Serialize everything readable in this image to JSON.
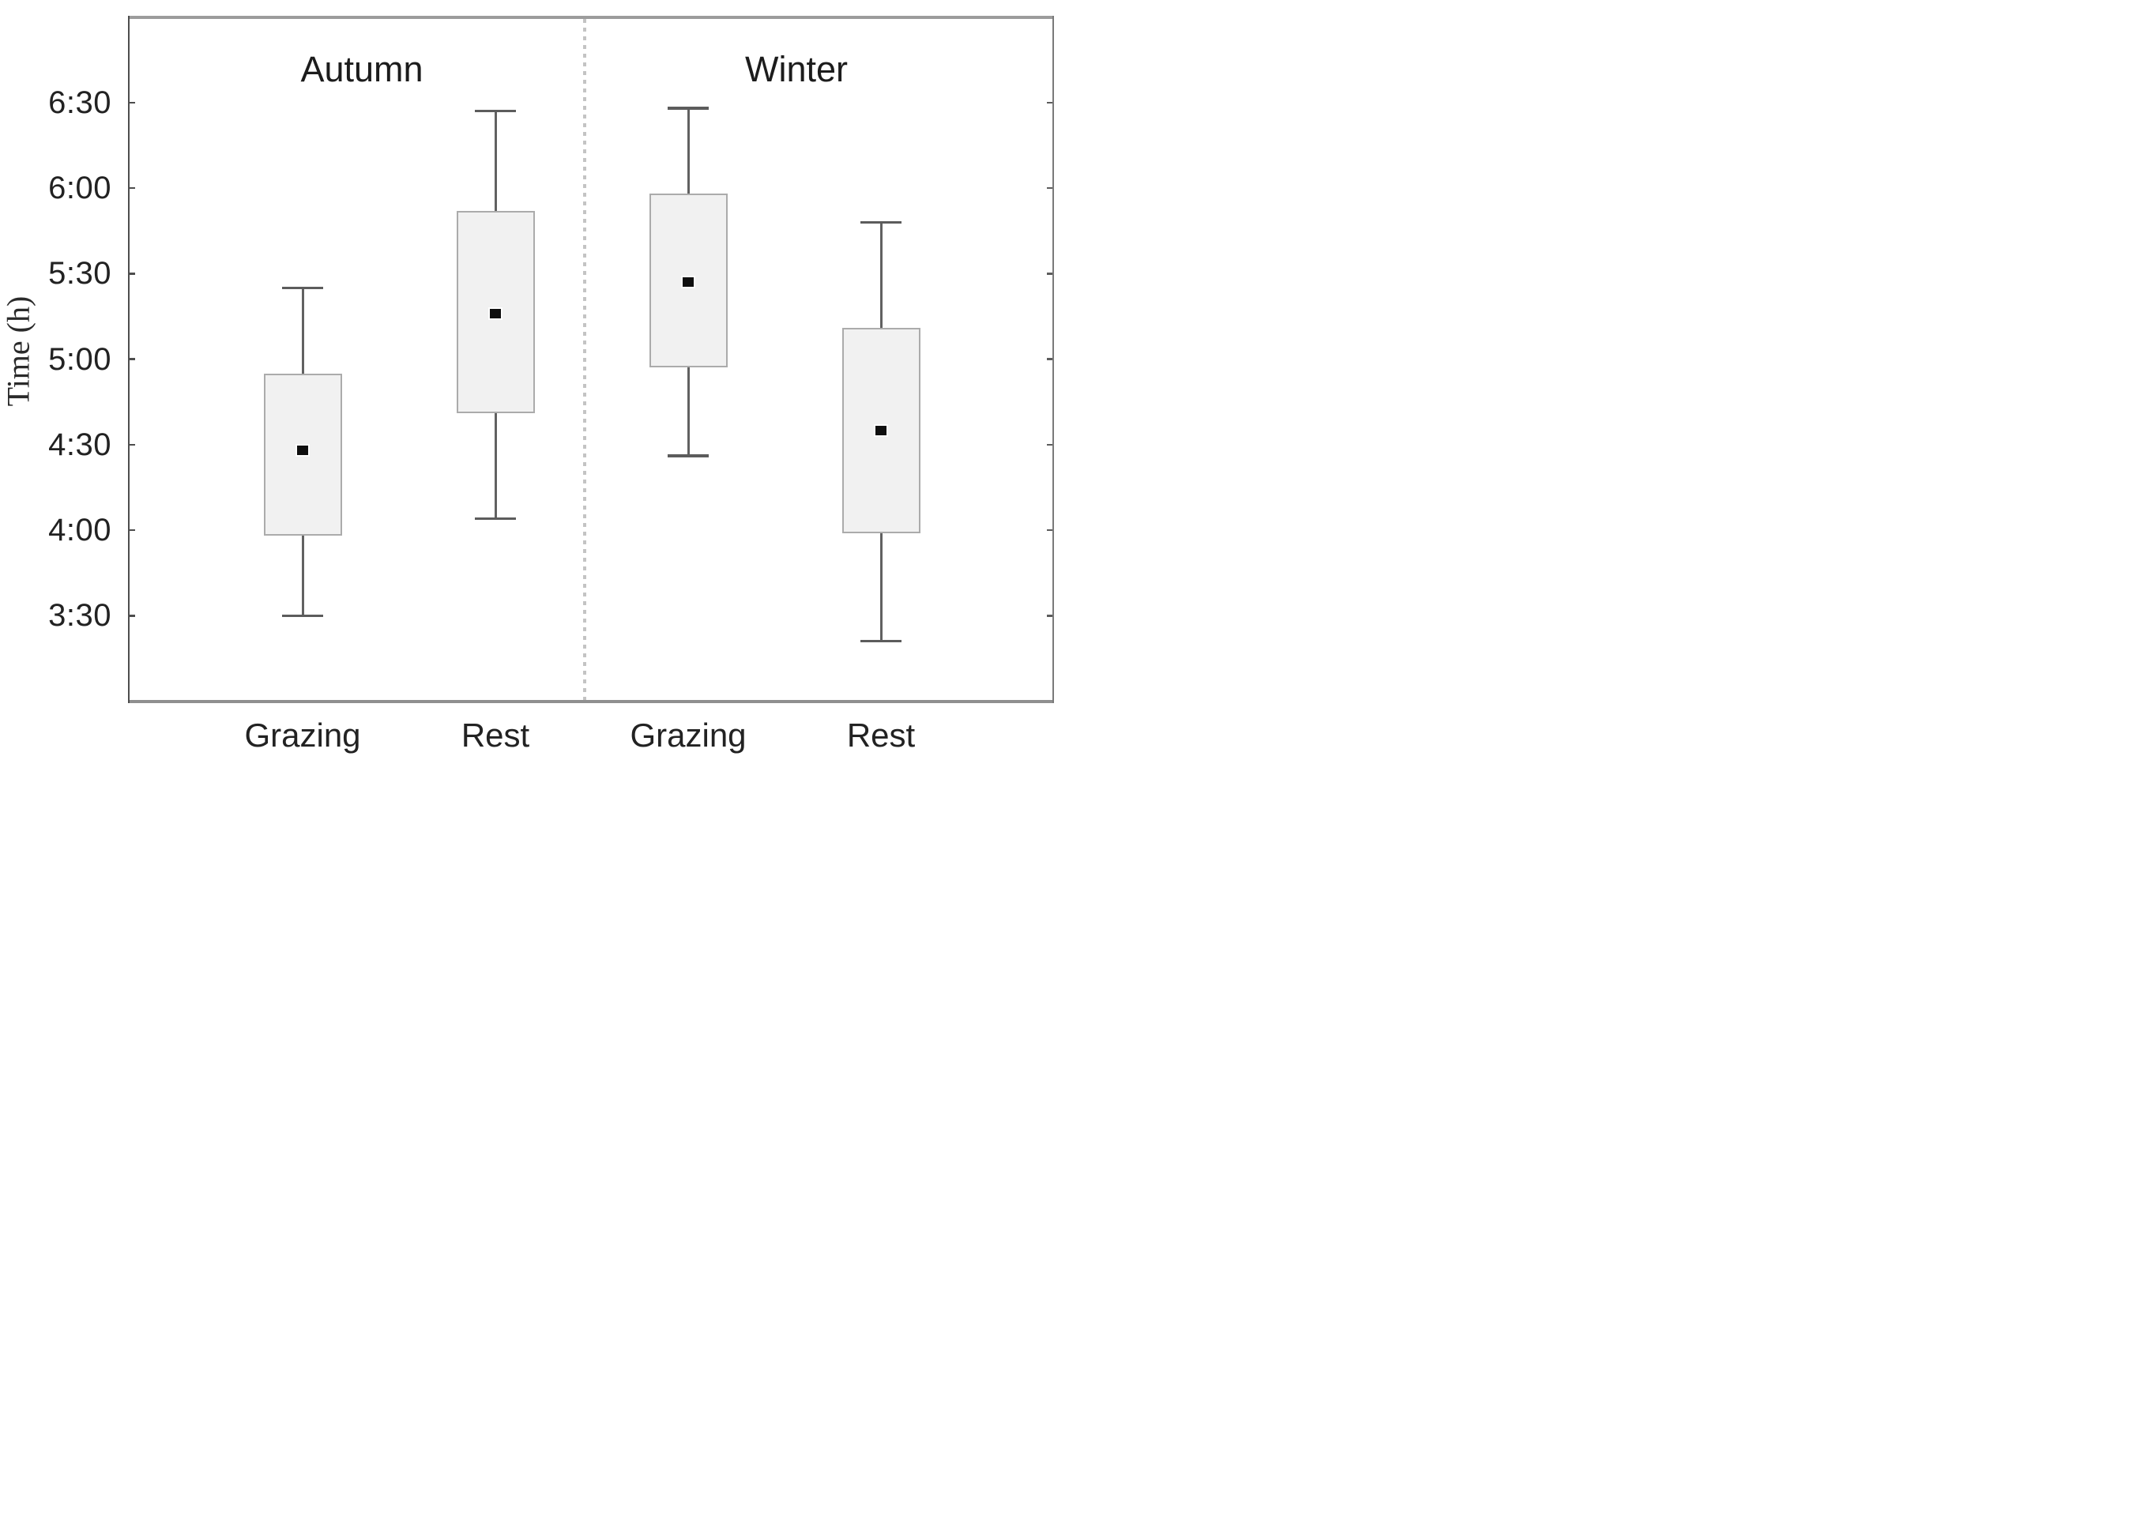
{
  "chart_data": {
    "type": "boxplot",
    "title": "",
    "ylabel": "Time (h)",
    "y_ticks": [
      "6:30",
      "6:00",
      "5:30",
      "5:00",
      "4:30",
      "4:00",
      "3:30"
    ],
    "ylim": [
      "3:00",
      "7:00"
    ],
    "grid": false,
    "legend_position": "none",
    "group_titles": [
      "Autumn",
      "Winter"
    ],
    "x_labels": [
      "Grazing",
      "Rest",
      "Grazing",
      "Rest"
    ],
    "marker_meaning": "mean",
    "series": [
      {
        "group": "Autumn",
        "category": "Grazing",
        "whisker_low": "3:30",
        "q1": "3:58",
        "mean": "4:28",
        "q3": "4:55",
        "whisker_high": "5:25"
      },
      {
        "group": "Autumn",
        "category": "Rest",
        "whisker_low": "4:04",
        "q1": "4:41",
        "mean": "5:16",
        "q3": "5:52",
        "whisker_high": "6:27"
      },
      {
        "group": "Winter",
        "category": "Grazing",
        "whisker_low": "4:26",
        "q1": "4:57",
        "mean": "5:27",
        "q3": "5:58",
        "whisker_high": "6:28"
      },
      {
        "group": "Winter",
        "category": "Rest",
        "whisker_low": "3:21",
        "q1": "3:59",
        "mean": "4:35",
        "q3": "5:11",
        "whisker_high": "5:48"
      }
    ],
    "colors": {
      "box_fill": "#f1f1f1",
      "box_border": "#ababab",
      "whisker": "#616161",
      "mean_marker": "#0f0f0f",
      "divider": "#c4c4c4",
      "frame": "#8f8f8f",
      "text": "#1c1c1c",
      "background": "#ffffff"
    }
  }
}
